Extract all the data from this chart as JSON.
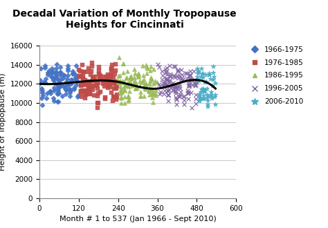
{
  "title": "Decadal Variation of Monthly Tropopause\nHeights for Cincinnati",
  "xlabel": "Month # 1 to 537 (Jan 1966 - Sept 2010)",
  "ylabel": "Height of Tropopause (m)",
  "xlim": [
    0,
    600
  ],
  "ylim": [
    0,
    16000
  ],
  "xticks": [
    0,
    120,
    240,
    360,
    480,
    600
  ],
  "yticks": [
    0,
    2000,
    4000,
    6000,
    8000,
    10000,
    12000,
    14000,
    16000
  ],
  "decades": [
    {
      "label": "1966-1975",
      "color": "#4472C4",
      "marker": "D",
      "x_start": 1,
      "x_end": 120,
      "y_mean": 12200,
      "y_std": 900,
      "n": 110
    },
    {
      "label": "1976-1985",
      "color": "#BE4B48",
      "marker": "s",
      "x_start": 121,
      "x_end": 240,
      "y_mean": 12100,
      "y_std": 1000,
      "n": 120
    },
    {
      "label": "1986-1995",
      "color": "#9BBB59",
      "marker": "^",
      "x_start": 241,
      "x_end": 360,
      "y_mean": 12000,
      "y_std": 950,
      "n": 120
    },
    {
      "label": "1996-2005",
      "color": "#8064A2",
      "marker": "x",
      "x_start": 361,
      "x_end": 480,
      "y_mean": 12000,
      "y_std": 900,
      "n": 120
    },
    {
      "label": "2006-2010",
      "color": "#4BACC6",
      "marker": "*",
      "x_start": 481,
      "x_end": 537,
      "y_mean": 11800,
      "y_std": 900,
      "n": 57
    }
  ],
  "trend_x": [
    1,
    120,
    240,
    360,
    480,
    537
  ],
  "trend_y": [
    12000,
    12200,
    12200,
    11500,
    12400,
    11500
  ],
  "background_color": "#ffffff",
  "title_fontsize": 10,
  "axis_fontsize": 8,
  "tick_fontsize": 7.5
}
